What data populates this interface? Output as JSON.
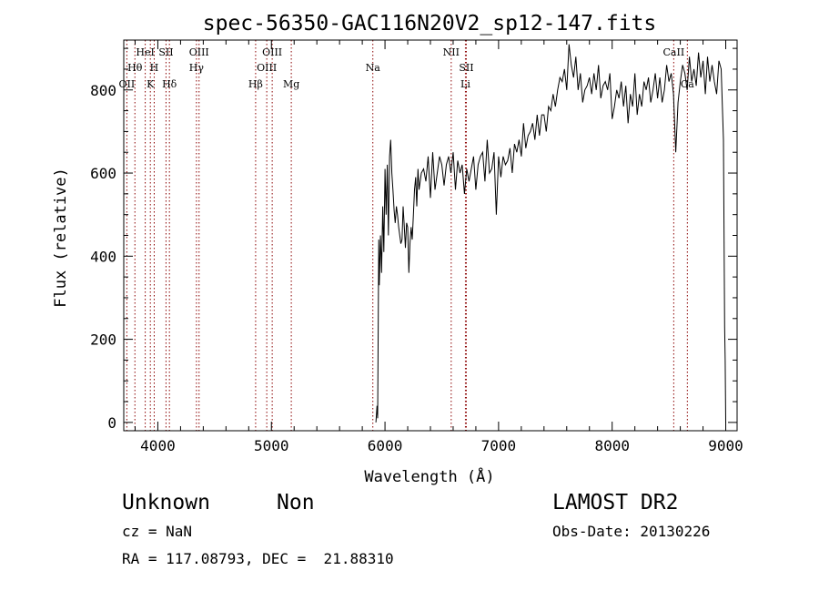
{
  "chart_data": {
    "type": "line",
    "title": "spec-56350-GAC116N20V2_sp12-147.fits",
    "xlabel": "Wavelength (Å)",
    "ylabel": "Flux (relative)",
    "xlim": [
      3700,
      9100
    ],
    "ylim": [
      -20,
      920
    ],
    "xticks": [
      4000,
      5000,
      6000,
      7000,
      8000,
      9000
    ],
    "yticks": [
      0,
      200,
      400,
      600,
      800
    ],
    "grid": false,
    "line_color": "#000000",
    "marker_color": "#8b0000",
    "line_markers": [
      {
        "label": "OII",
        "x": 3727,
        "row": 3
      },
      {
        "label": "Hθ",
        "x": 3798,
        "row": 2
      },
      {
        "label": "HeI",
        "x": 3889,
        "row": 1
      },
      {
        "label": "K",
        "x": 3934,
        "row": 3
      },
      {
        "label": "H",
        "x": 3968,
        "row": 2
      },
      {
        "label": "SII",
        "x": 4072,
        "row": 1
      },
      {
        "label": "Hδ",
        "x": 4102,
        "row": 3
      },
      {
        "label": "OIII",
        "x": 4363,
        "row": 1
      },
      {
        "label": "Hγ",
        "x": 4340,
        "row": 2
      },
      {
        "label": "Hβ",
        "x": 4861,
        "row": 3
      },
      {
        "label": "OIII",
        "x": 4959,
        "row": 2
      },
      {
        "label": "OIII",
        "x": 5007,
        "row": 1
      },
      {
        "label": "Mg",
        "x": 5175,
        "row": 3
      },
      {
        "label": "Na",
        "x": 5893,
        "row": 2
      },
      {
        "label": "NII",
        "x": 6583,
        "row": 1
      },
      {
        "label": "SII",
        "x": 6716,
        "row": 2
      },
      {
        "label": "Li",
        "x": 6708,
        "row": 3
      },
      {
        "label": "CaII",
        "x": 8542,
        "row": 1
      },
      {
        "label": "Ca",
        "x": 8662,
        "row": 3
      }
    ],
    "series": [
      {
        "x": [
          5920,
          5930,
          5935,
          5945,
          5950,
          5960,
          5970,
          5980,
          5990,
          6000,
          6010,
          6020,
          6030,
          6040,
          6050,
          6060,
          6070,
          6080,
          6090,
          6100,
          6110,
          6120,
          6130,
          6140,
          6150,
          6160,
          6170,
          6180,
          6190,
          6200,
          6210,
          6220,
          6230,
          6240,
          6250,
          6260,
          6270,
          6280,
          6290,
          6300,
          6320,
          6340,
          6360,
          6380,
          6400,
          6420,
          6440,
          6460,
          6480,
          6500,
          6520,
          6540,
          6560,
          6580,
          6600,
          6620,
          6640,
          6660,
          6680,
          6700,
          6720,
          6740,
          6760,
          6780,
          6800,
          6820,
          6840,
          6860,
          6880,
          6900,
          6920,
          6940,
          6960,
          6980,
          7000,
          7020,
          7040,
          7060,
          7080,
          7100,
          7120,
          7140,
          7160,
          7180,
          7200,
          7220,
          7240,
          7260,
          7280,
          7300,
          7320,
          7340,
          7360,
          7380,
          7400,
          7420,
          7440,
          7460,
          7480,
          7500,
          7520,
          7540,
          7560,
          7580,
          7600,
          7620,
          7640,
          7660,
          7680,
          7700,
          7720,
          7740,
          7760,
          7780,
          7800,
          7820,
          7840,
          7860,
          7880,
          7900,
          7920,
          7940,
          7960,
          7980,
          8000,
          8020,
          8040,
          8060,
          8080,
          8100,
          8120,
          8140,
          8160,
          8180,
          8200,
          8220,
          8240,
          8260,
          8280,
          8300,
          8320,
          8340,
          8360,
          8380,
          8400,
          8420,
          8440,
          8460,
          8480,
          8500,
          8520,
          8540,
          8560,
          8580,
          8600,
          8620,
          8640,
          8660,
          8680,
          8700,
          8720,
          8740,
          8760,
          8780,
          8800,
          8820,
          8840,
          8860,
          8880,
          8900,
          8920,
          8940,
          8960,
          8980,
          8990,
          8995,
          9000
        ],
        "y": [
          0,
          40,
          10,
          440,
          330,
          450,
          360,
          520,
          410,
          610,
          500,
          620,
          450,
          640,
          680,
          600,
          560,
          510,
          480,
          520,
          500,
          470,
          450,
          430,
          440,
          520,
          470,
          420,
          480,
          470,
          360,
          430,
          470,
          440,
          500,
          560,
          590,
          520,
          610,
          560,
          600,
          610,
          580,
          640,
          540,
          650,
          560,
          600,
          640,
          620,
          570,
          620,
          640,
          600,
          650,
          560,
          630,
          600,
          620,
          550,
          610,
          580,
          610,
          640,
          560,
          620,
          640,
          650,
          580,
          680,
          600,
          610,
          650,
          500,
          640,
          590,
          640,
          620,
          630,
          660,
          600,
          670,
          650,
          680,
          640,
          720,
          660,
          690,
          700,
          720,
          680,
          740,
          690,
          740,
          740,
          700,
          760,
          750,
          790,
          760,
          800,
          830,
          820,
          850,
          800,
          910,
          860,
          830,
          880,
          800,
          840,
          770,
          800,
          810,
          830,
          790,
          840,
          800,
          860,
          780,
          810,
          820,
          800,
          840,
          730,
          760,
          800,
          780,
          820,
          760,
          810,
          720,
          790,
          760,
          840,
          740,
          790,
          760,
          820,
          800,
          830,
          770,
          800,
          840,
          780,
          830,
          770,
          800,
          860,
          820,
          840,
          790,
          650,
          770,
          820,
          860,
          840,
          800,
          880,
          820,
          850,
          810,
          890,
          830,
          870,
          790,
          880,
          820,
          860,
          820,
          790,
          870,
          850,
          680,
          230,
          150,
          0
        ]
      }
    ]
  },
  "footer": {
    "object_class": "Unknown",
    "object_subclass": "Non",
    "cz": "cz = NaN",
    "radec": "RA = 117.08793, DEC =  21.88310",
    "survey": "LAMOST DR2",
    "obs_date": "Obs-Date: 20130226"
  }
}
